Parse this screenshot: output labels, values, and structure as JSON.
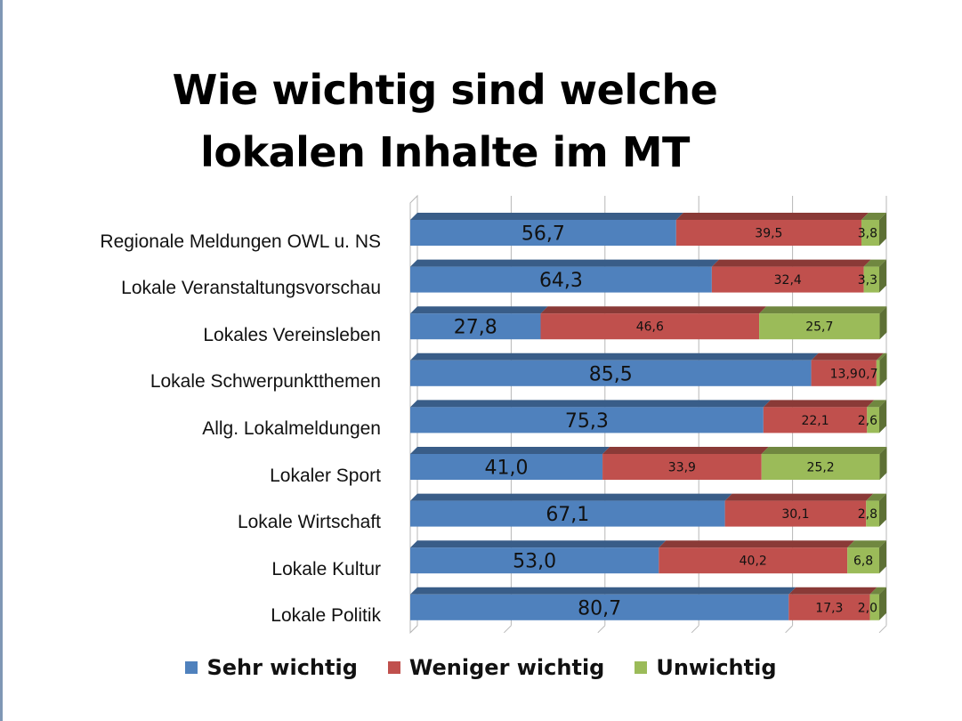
{
  "title_lines": [
    "Wie wichtig sind welche",
    "lokalen Inhalte im MT"
  ],
  "colors": {
    "Sehr wichtig": "#4f81bd",
    "Weniger wichtig": "#c0504d",
    "Unwichtig": "#9bbb59"
  },
  "chart_data": {
    "type": "bar",
    "orientation": "horizontal",
    "stacked": true,
    "title": "Wie wichtig sind welche lokalen Inhalte im MT",
    "categories": [
      "Regionale Meldungen OWL u. NS",
      "Lokale Veranstaltungsvorschau",
      "Lokales Vereinsleben",
      "Lokale Schwerpunktthemen",
      "Allg. Lokalmeldungen",
      "Lokaler Sport",
      "Lokale Wirtschaft",
      "Lokale Kultur",
      "Lokale Politik"
    ],
    "series": [
      {
        "name": "Sehr wichtig",
        "values": [
          56.7,
          64.3,
          27.8,
          85.5,
          75.3,
          41.0,
          67.1,
          53.0,
          80.7
        ],
        "labels": [
          "56,7",
          "64,3",
          "27,8",
          "85,5",
          "75,3",
          "41,0",
          "67,1",
          "53,0",
          "80,7"
        ]
      },
      {
        "name": "Weniger wichtig",
        "values": [
          39.5,
          32.4,
          46.6,
          13.9,
          22.1,
          33.9,
          30.1,
          40.2,
          17.3
        ],
        "labels": [
          "39,5",
          "32,4",
          "46,6",
          "13,9",
          "22,1",
          "33,9",
          "30,1",
          "40,2",
          "17,3"
        ]
      },
      {
        "name": "Unwichtig",
        "values": [
          3.8,
          3.3,
          25.7,
          0.7,
          2.6,
          25.2,
          2.8,
          6.8,
          2.0
        ],
        "labels": [
          "3,8",
          "3,3",
          "25,7",
          "0,7",
          "2,6",
          "25,2",
          "2,8",
          "6,8",
          "2,0"
        ]
      }
    ],
    "xlim": [
      0,
      100
    ],
    "grid": true,
    "legend_position": "bottom"
  }
}
